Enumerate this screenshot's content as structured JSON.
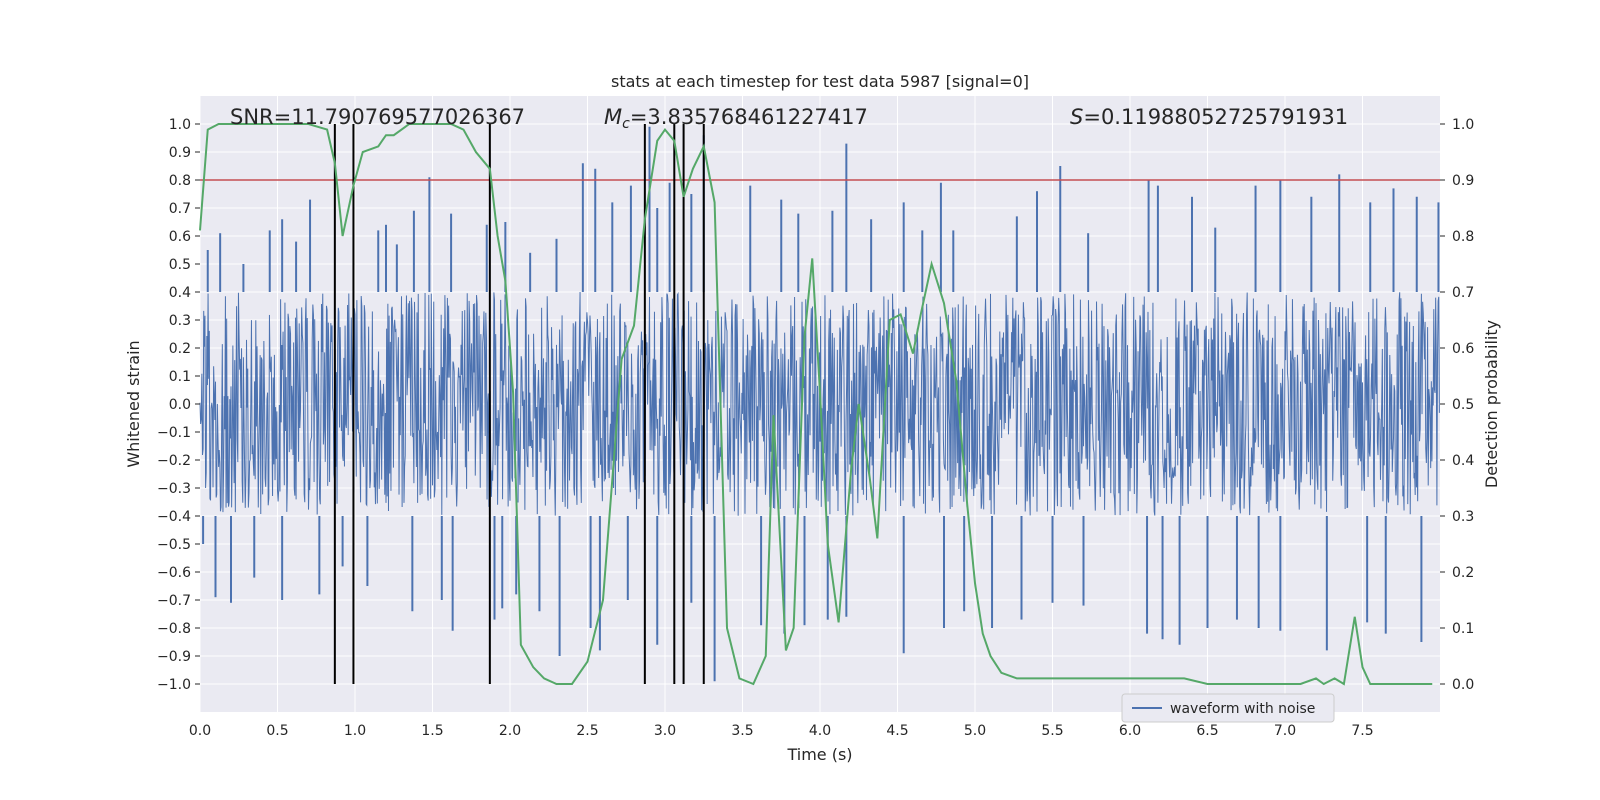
{
  "chart_data": {
    "type": "line",
    "title": "stats at each timestep for test data 5987 [signal=0]",
    "xlabel": "Time (s)",
    "ylabel": "Whitened strain",
    "y2label": "Detection probability",
    "xlim": [
      0,
      8
    ],
    "ylim": [
      -1.1,
      1.1
    ],
    "y2lim": [
      -0.05,
      1.05
    ],
    "x_ticks": [
      "0.0",
      "0.5",
      "1.0",
      "1.5",
      "2.0",
      "2.5",
      "3.0",
      "3.5",
      "4.0",
      "4.5",
      "5.0",
      "5.5",
      "6.0",
      "6.5",
      "7.0",
      "7.5"
    ],
    "y_ticks": [
      "−1.0",
      "−0.9",
      "−0.8",
      "−0.7",
      "−0.6",
      "−0.5",
      "−0.4",
      "−0.3",
      "−0.2",
      "−0.1",
      "0.0",
      "0.1",
      "0.2",
      "0.3",
      "0.4",
      "0.5",
      "0.6",
      "0.7",
      "0.8",
      "0.9",
      "1.0"
    ],
    "y2_ticks": [
      "0.0",
      "0.1",
      "0.2",
      "0.3",
      "0.4",
      "0.5",
      "0.6",
      "0.7",
      "0.8",
      "0.9",
      "1.0"
    ],
    "annotations": {
      "snr": "SNR=11.790769577026367",
      "mc_symbol": "M",
      "mc_sub": "c",
      "mc_value": "=3.835768461227417",
      "s_symbol": "S",
      "s_value": "=0.11988052725791931"
    },
    "threshold": {
      "y2": 0.9,
      "color": "#c44e52"
    },
    "vertical_lines_x": [
      0.87,
      0.99,
      1.87,
      2.87,
      3.06,
      3.12,
      3.25
    ],
    "series": [
      {
        "name": "waveform with noise",
        "color": "#4c72b0",
        "kind": "noisy strain",
        "core_amplitude": 0.4,
        "sample_count": 2000,
        "peak_spikes": [
          [
            0.05,
            0.55
          ],
          [
            0.13,
            0.61
          ],
          [
            0.28,
            0.5
          ],
          [
            0.45,
            0.62
          ],
          [
            0.53,
            0.66
          ],
          [
            0.62,
            0.58
          ],
          [
            0.71,
            0.73
          ],
          [
            1.15,
            0.62
          ],
          [
            1.2,
            0.64
          ],
          [
            1.27,
            0.57
          ],
          [
            1.38,
            0.69
          ],
          [
            1.48,
            0.81
          ],
          [
            1.62,
            0.68
          ],
          [
            1.85,
            0.64
          ],
          [
            1.97,
            0.65
          ],
          [
            2.13,
            0.54
          ],
          [
            2.3,
            0.59
          ],
          [
            2.47,
            0.86
          ],
          [
            2.55,
            0.84
          ],
          [
            2.66,
            0.72
          ],
          [
            2.78,
            0.78
          ],
          [
            2.9,
            0.99
          ],
          [
            2.95,
            0.7
          ],
          [
            3.03,
            0.79
          ],
          [
            3.17,
            0.75
          ],
          [
            3.25,
            0.96
          ],
          [
            3.55,
            0.78
          ],
          [
            3.75,
            0.73
          ],
          [
            3.86,
            0.68
          ],
          [
            4.08,
            0.69
          ],
          [
            4.17,
            0.93
          ],
          [
            4.33,
            0.66
          ],
          [
            4.54,
            0.72
          ],
          [
            4.66,
            0.62
          ],
          [
            4.78,
            0.79
          ],
          [
            4.86,
            0.62
          ],
          [
            5.27,
            0.67
          ],
          [
            5.4,
            0.76
          ],
          [
            5.55,
            0.85
          ],
          [
            5.73,
            0.61
          ],
          [
            6.12,
            0.8
          ],
          [
            6.18,
            0.78
          ],
          [
            6.4,
            0.74
          ],
          [
            6.55,
            0.63
          ],
          [
            6.81,
            0.78
          ],
          [
            6.97,
            0.8
          ],
          [
            7.17,
            0.74
          ],
          [
            7.35,
            0.82
          ],
          [
            7.55,
            0.72
          ],
          [
            7.7,
            0.77
          ],
          [
            7.85,
            0.74
          ],
          [
            7.99,
            0.72
          ]
        ],
        "trough_spikes": [
          [
            0.02,
            -0.5
          ],
          [
            0.1,
            -0.69
          ],
          [
            0.2,
            -0.71
          ],
          [
            0.35,
            -0.62
          ],
          [
            0.53,
            -0.7
          ],
          [
            0.77,
            -0.68
          ],
          [
            0.92,
            -0.58
          ],
          [
            1.08,
            -0.65
          ],
          [
            1.37,
            -0.74
          ],
          [
            1.56,
            -0.7
          ],
          [
            1.63,
            -0.81
          ],
          [
            1.9,
            -0.77
          ],
          [
            1.95,
            -0.73
          ],
          [
            2.04,
            -0.68
          ],
          [
            2.19,
            -0.74
          ],
          [
            2.32,
            -0.9
          ],
          [
            2.52,
            -0.8
          ],
          [
            2.58,
            -0.88
          ],
          [
            2.76,
            -0.7
          ],
          [
            2.95,
            -0.86
          ],
          [
            3.17,
            -0.71
          ],
          [
            3.32,
            -0.99
          ],
          [
            3.62,
            -0.79
          ],
          [
            3.77,
            -0.82
          ],
          [
            3.9,
            -0.79
          ],
          [
            4.05,
            -0.77
          ],
          [
            4.17,
            -0.76
          ],
          [
            4.54,
            -0.89
          ],
          [
            4.8,
            -0.8
          ],
          [
            4.93,
            -0.74
          ],
          [
            5.11,
            -0.8
          ],
          [
            5.3,
            -0.77
          ],
          [
            5.5,
            -0.71
          ],
          [
            5.7,
            -0.72
          ],
          [
            6.11,
            -0.82
          ],
          [
            6.21,
            -0.84
          ],
          [
            6.32,
            -0.86
          ],
          [
            6.5,
            -0.8
          ],
          [
            6.69,
            -0.77
          ],
          [
            6.83,
            -0.8
          ],
          [
            6.97,
            -0.81
          ],
          [
            7.27,
            -0.88
          ],
          [
            7.53,
            -0.78
          ],
          [
            7.65,
            -0.82
          ],
          [
            7.88,
            -0.85
          ]
        ]
      },
      {
        "name": "detection probability",
        "color": "#55a868",
        "axis": "y2",
        "x": [
          0.0,
          0.05,
          0.12,
          0.5,
          0.7,
          0.82,
          0.87,
          0.92,
          0.99,
          1.05,
          1.15,
          1.2,
          1.25,
          1.35,
          1.45,
          1.55,
          1.62,
          1.7,
          1.78,
          1.87,
          1.92,
          1.97,
          2.02,
          2.07,
          2.15,
          2.22,
          2.3,
          2.4,
          2.5,
          2.6,
          2.72,
          2.8,
          2.87,
          2.95,
          3.0,
          3.06,
          3.12,
          3.18,
          3.25,
          3.32,
          3.4,
          3.48,
          3.57,
          3.65,
          3.7,
          3.78,
          3.83,
          3.9,
          3.95,
          4.0,
          4.05,
          4.12,
          4.2,
          4.25,
          4.32,
          4.37,
          4.45,
          4.52,
          4.6,
          4.65,
          4.72,
          4.8,
          4.88,
          4.95,
          5.0,
          5.05,
          5.1,
          5.17,
          5.27,
          5.37,
          5.5,
          5.7,
          5.85,
          5.95,
          6.05,
          6.2,
          6.35,
          6.5,
          6.7,
          6.9,
          7.1,
          7.2,
          7.25,
          7.32,
          7.38,
          7.45,
          7.5,
          7.55,
          7.65,
          7.75,
          7.85,
          7.95
        ],
        "y": [
          0.81,
          0.99,
          1.0,
          1.0,
          1.0,
          0.99,
          0.93,
          0.8,
          0.89,
          0.95,
          0.96,
          0.98,
          0.98,
          1.0,
          1.0,
          1.0,
          1.0,
          0.99,
          0.95,
          0.92,
          0.8,
          0.72,
          0.52,
          0.07,
          0.03,
          0.01,
          0.0,
          0.0,
          0.04,
          0.15,
          0.58,
          0.64,
          0.83,
          0.97,
          0.99,
          0.97,
          0.87,
          0.92,
          0.96,
          0.86,
          0.1,
          0.01,
          0.0,
          0.05,
          0.48,
          0.06,
          0.1,
          0.62,
          0.76,
          0.52,
          0.25,
          0.11,
          0.38,
          0.5,
          0.37,
          0.26,
          0.65,
          0.66,
          0.59,
          0.66,
          0.75,
          0.68,
          0.54,
          0.32,
          0.18,
          0.09,
          0.05,
          0.02,
          0.01,
          0.01,
          0.01,
          0.01,
          0.01,
          0.01,
          0.01,
          0.01,
          0.01,
          0.0,
          0.0,
          0.0,
          0.0,
          0.01,
          0.0,
          0.01,
          0.0,
          0.12,
          0.03,
          0.0,
          0.0,
          0.0,
          0.0,
          0.0
        ]
      }
    ],
    "legend": {
      "position": "lower center-right",
      "entries": [
        "waveform with noise"
      ]
    },
    "grid": true,
    "colors": {
      "background": "#eaeaf2",
      "grid": "#ffffff",
      "vertical_line": "#000000"
    }
  }
}
